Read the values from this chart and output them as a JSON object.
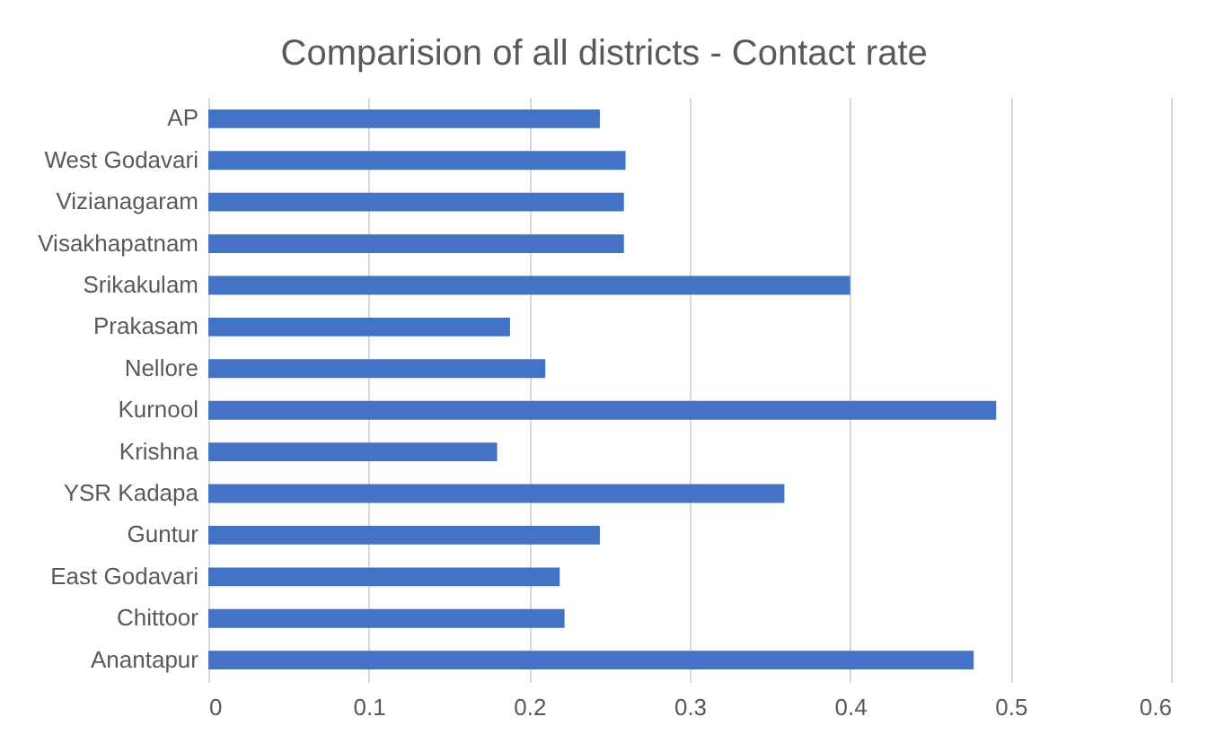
{
  "chart_data": {
    "type": "bar",
    "orientation": "horizontal",
    "title": "Comparision of all districts - Contact rate",
    "categories": [
      "AP",
      "West Godavari",
      "Vizianagaram",
      "Visakhapatnam",
      "Srikakulam",
      "Prakasam",
      "Nellore",
      "Kurnool",
      "Krishna",
      "YSR Kadapa",
      "Guntur",
      "East Godavari",
      "Chittoor",
      "Anantapur"
    ],
    "values": [
      0.244,
      0.26,
      0.259,
      0.259,
      0.4,
      0.188,
      0.21,
      0.491,
      0.18,
      0.359,
      0.244,
      0.219,
      0.222,
      0.477
    ],
    "color": "#4472c4",
    "xlim": [
      0,
      0.6
    ],
    "xticks": [
      0,
      0.1,
      0.2,
      0.3,
      0.4,
      0.5,
      0.6
    ],
    "grid": "x"
  }
}
